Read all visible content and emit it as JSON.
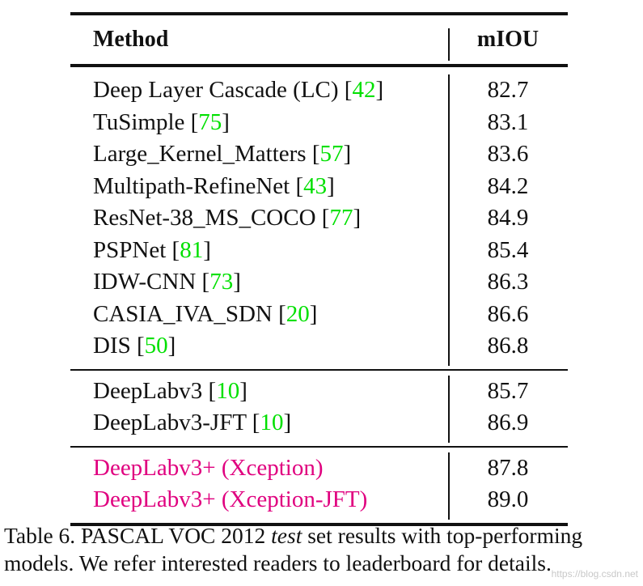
{
  "table": {
    "header": {
      "method": "Method",
      "score": "mIOU"
    },
    "groups": [
      {
        "rows": [
          {
            "name": "Deep Layer Cascade (LC) ",
            "ref": "42",
            "score": "82.7"
          },
          {
            "name": "TuSimple ",
            "ref": "75",
            "score": "83.1"
          },
          {
            "name": "Large_Kernel_Matters ",
            "ref": "57",
            "score": "83.6"
          },
          {
            "name": "Multipath-RefineNet ",
            "ref": "43",
            "score": "84.2"
          },
          {
            "name": "ResNet-38_MS_COCO ",
            "ref": "77",
            "score": "84.9"
          },
          {
            "name": "PSPNet ",
            "ref": "81",
            "score": "85.4"
          },
          {
            "name": "IDW-CNN ",
            "ref": "73",
            "score": "86.3"
          },
          {
            "name": "CASIA_IVA_SDN ",
            "ref": "20",
            "score": "86.6"
          },
          {
            "name": "DIS ",
            "ref": "50",
            "score": "86.8"
          }
        ]
      },
      {
        "rows": [
          {
            "name": "DeepLabv3 ",
            "ref": "10",
            "score": "85.7"
          },
          {
            "name": "DeepLabv3-JFT ",
            "ref": "10",
            "score": "86.9"
          }
        ]
      },
      {
        "highlight": true,
        "rows": [
          {
            "name": "DeepLabv3+ (Xception)",
            "ref": "",
            "score": "87.8"
          },
          {
            "name": "DeepLabv3+ (Xception-JFT)",
            "ref": "",
            "score": "89.0"
          }
        ]
      }
    ]
  },
  "caption": {
    "prefix": "Table 6. PASCAL VOC 2012 ",
    "italic": "test",
    "suffix": " set results with top-performing models. We refer interested readers to leaderboard for details."
  },
  "watermark": "https://blog.csdn.net",
  "colors": {
    "ref_link": "#00e000",
    "highlight": "#e0007f"
  }
}
